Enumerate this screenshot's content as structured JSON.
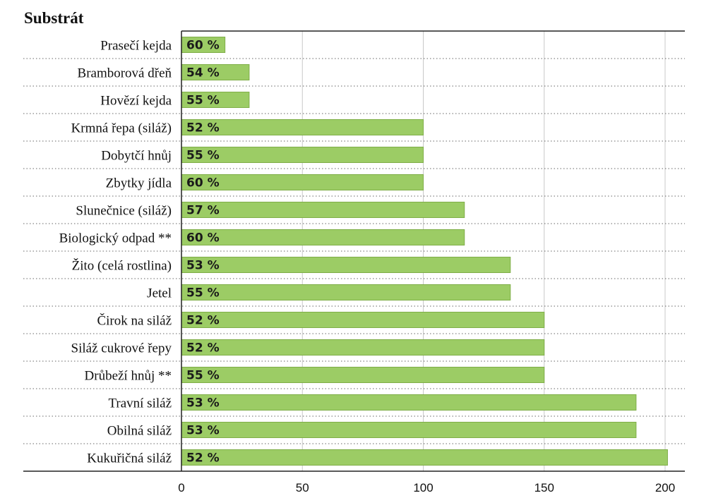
{
  "chart_data": {
    "type": "bar",
    "orientation": "horizontal",
    "title": "Substrát",
    "categories": [
      "Prasečí kejda",
      "Bramborová dřeň",
      "Hovězí kejda",
      "Krmná řepa (siláž)",
      "Dobytčí hnůj",
      "Zbytky jídla",
      "Slunečnice (siláž)",
      "Biologický odpad **",
      "Žito (celá rostlina)",
      "Jetel",
      "Čirok na siláž",
      "Siláž cukrové řepy",
      "Drůbeží hnůj **",
      "Travní siláž",
      "Obilná siláž",
      "Kukuřičná siláž"
    ],
    "values": [
      18,
      28,
      28,
      100,
      100,
      100,
      117,
      117,
      136,
      136,
      150,
      150,
      150,
      188,
      188,
      201
    ],
    "data_labels": [
      "60 %",
      "54 %",
      "55 %",
      "52 %",
      "55 %",
      "60 %",
      "57 %",
      "60 %",
      "53 %",
      "55 %",
      "52 %",
      "52 %",
      "55 %",
      "53 %",
      "53 %",
      "52 %"
    ],
    "xlim": [
      0,
      200
    ],
    "xticks": [
      "0",
      "50",
      "100",
      "150",
      "200"
    ],
    "xtick_values": [
      0,
      50,
      100,
      150,
      200
    ],
    "grid": "vertical",
    "bar_color": "#9ccc65",
    "bar_stroke": "#7fae48"
  }
}
